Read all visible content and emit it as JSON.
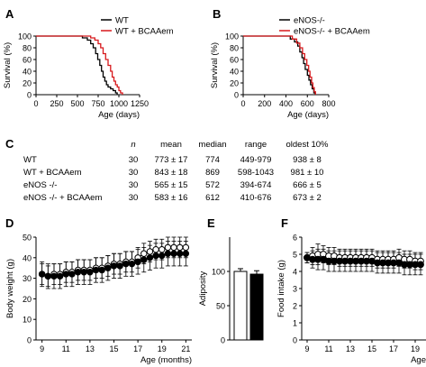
{
  "panels": {
    "A": {
      "letter": "A"
    },
    "B": {
      "letter": "B"
    },
    "C": {
      "letter": "C"
    },
    "D": {
      "letter": "D"
    },
    "E": {
      "letter": "E"
    },
    "F": {
      "letter": "F"
    }
  },
  "colors": {
    "black": "#000000",
    "red": "#d7191c"
  },
  "table": {
    "headers": [
      "",
      "n",
      "mean",
      "median",
      "range",
      "oldest 10%"
    ],
    "rows": [
      [
        "WT",
        "30",
        "773 ± 17",
        "774",
        "449-979",
        "938 ± 8"
      ],
      [
        "WT + BCAAem",
        "30",
        "843 ± 18",
        "869",
        "598-1043",
        "981 ± 10"
      ],
      [
        "eNOS -/-",
        "30",
        "565 ± 15",
        "572",
        "394-674",
        "666 ± 5"
      ],
      [
        "eNOS -/- + BCAAem",
        "30",
        "583 ± 16",
        "612",
        "410-676",
        "673 ± 2"
      ]
    ]
  },
  "chart_data": [
    {
      "panel": "A",
      "type": "line",
      "ylabel": "Survival (%)",
      "xlabel": "Age (days)",
      "xlim": [
        0,
        1250
      ],
      "ylim": [
        0,
        100
      ],
      "xticks": [
        0,
        250,
        500,
        750,
        1000,
        1250
      ],
      "yticks": [
        0,
        20,
        40,
        60,
        80,
        100
      ],
      "legend_position": "top-right",
      "series": [
        {
          "name": "WT",
          "color": "#000000",
          "x": [
            0,
            449,
            560,
            620,
            660,
            690,
            720,
            745,
            770,
            790,
            810,
            830,
            850,
            870,
            900,
            930,
            960,
            979
          ],
          "y": [
            100,
            100,
            97,
            93,
            87,
            80,
            70,
            60,
            50,
            40,
            30,
            23,
            17,
            13,
            10,
            7,
            3,
            0
          ]
        },
        {
          "name": "WT + BCAAem",
          "color": "#d7191c",
          "x": [
            0,
            598,
            660,
            710,
            750,
            780,
            810,
            840,
            870,
            900,
            920,
            940,
            960,
            980,
            1000,
            1020,
            1043
          ],
          "y": [
            100,
            100,
            97,
            93,
            87,
            80,
            70,
            60,
            50,
            40,
            30,
            23,
            17,
            13,
            7,
            3,
            0
          ]
        }
      ]
    },
    {
      "panel": "B",
      "type": "line",
      "ylabel": "Survival (%)",
      "xlabel": "Age (days)",
      "xlim": [
        0,
        800
      ],
      "ylim": [
        0,
        100
      ],
      "xticks": [
        0,
        200,
        400,
        600,
        800
      ],
      "yticks": [
        0,
        20,
        40,
        60,
        80,
        100
      ],
      "legend_position": "top-right",
      "series": [
        {
          "name": "eNOS-/-",
          "color": "#000000",
          "x": [
            0,
            394,
            440,
            480,
            510,
            530,
            550,
            565,
            580,
            600,
            615,
            630,
            645,
            660,
            674
          ],
          "y": [
            100,
            100,
            95,
            90,
            83,
            73,
            63,
            53,
            43,
            33,
            25,
            17,
            10,
            3,
            0
          ]
        },
        {
          "name": "eNOS-/- + BCAAem",
          "color": "#d7191c",
          "x": [
            0,
            410,
            460,
            500,
            530,
            555,
            575,
            595,
            612,
            625,
            640,
            652,
            664,
            676
          ],
          "y": [
            100,
            100,
            95,
            88,
            80,
            70,
            60,
            50,
            40,
            30,
            20,
            12,
            5,
            0
          ]
        }
      ]
    },
    {
      "panel": "D",
      "type": "line",
      "ylabel": "Body weight (g)",
      "xlabel": "Age (months)",
      "xlim": [
        8.5,
        21.5
      ],
      "ylim": [
        0,
        50
      ],
      "xticks": [
        9,
        11,
        13,
        15,
        17,
        19,
        21
      ],
      "yticks": [
        0,
        10,
        20,
        30,
        40,
        50
      ],
      "series": [
        {
          "marker": "open",
          "x": [
            9,
            9.5,
            10,
            10.5,
            11,
            11.5,
            12,
            12.5,
            13,
            13.5,
            14,
            14.5,
            15,
            15.5,
            16,
            16.5,
            17,
            17.5,
            18,
            18.5,
            19,
            19.5,
            20,
            20.5,
            21
          ],
          "y": [
            32,
            31,
            32,
            32,
            33,
            33,
            34,
            34,
            34,
            35,
            35,
            36,
            37,
            37,
            38,
            38,
            40,
            42,
            43,
            44,
            44,
            45,
            45,
            45,
            45
          ],
          "err": [
            5,
            5,
            5,
            5,
            5,
            5,
            5,
            5,
            5,
            5,
            5,
            5,
            5,
            5,
            5,
            5,
            5,
            5,
            5,
            5,
            5,
            5,
            5,
            5,
            5
          ]
        },
        {
          "marker": "filled",
          "x": [
            9,
            9.5,
            10,
            10.5,
            11,
            11.5,
            12,
            12.5,
            13,
            13.5,
            14,
            14.5,
            15,
            15.5,
            16,
            16.5,
            17,
            17.5,
            18,
            18.5,
            19,
            19.5,
            20,
            20.5,
            21
          ],
          "y": [
            32,
            31,
            31,
            31,
            32,
            32,
            33,
            33,
            33,
            34,
            34,
            35,
            36,
            36,
            37,
            37,
            38,
            39,
            40,
            41,
            41,
            42,
            42,
            42,
            42
          ],
          "err": [
            6,
            6,
            6,
            6,
            6,
            6,
            6,
            6,
            6,
            6,
            6,
            6,
            6,
            6,
            6,
            6,
            6,
            6,
            6,
            6,
            6,
            6,
            6,
            6,
            6
          ]
        }
      ]
    },
    {
      "panel": "E",
      "type": "bar",
      "ylabel": "Adiposity",
      "ylim": [
        0,
        150
      ],
      "yticks": [
        0,
        50,
        100
      ],
      "categories": [
        "",
        ""
      ],
      "bar_fills": [
        "#ffffff",
        "#000000"
      ],
      "values": [
        100,
        96
      ],
      "err": [
        4,
        5
      ]
    },
    {
      "panel": "F",
      "type": "line",
      "ylabel": "Food intake (g)",
      "xlabel": "Age",
      "xlim": [
        8.5,
        20
      ],
      "ylim": [
        0,
        6
      ],
      "xticks": [
        9,
        11,
        13,
        15,
        17,
        19
      ],
      "yticks": [
        0,
        1,
        2,
        3,
        4,
        5,
        6
      ],
      "series": [
        {
          "marker": "open",
          "x": [
            9,
            9.5,
            10,
            10.5,
            11,
            11.5,
            12,
            12.5,
            13,
            13.5,
            14,
            14.5,
            15,
            15.5,
            16,
            16.5,
            17,
            17.5,
            18,
            18.5,
            19,
            19.5
          ],
          "y": [
            4.8,
            4.9,
            5.0,
            5.0,
            4.9,
            4.9,
            4.8,
            4.8,
            4.8,
            4.8,
            4.8,
            4.8,
            4.8,
            4.7,
            4.7,
            4.7,
            4.7,
            4.8,
            4.7,
            4.7,
            4.6,
            4.6
          ],
          "err": [
            0.3,
            0.5,
            0.6,
            0.5,
            0.5,
            0.5,
            0.5,
            0.5,
            0.5,
            0.5,
            0.5,
            0.5,
            0.5,
            0.5,
            0.5,
            0.5,
            0.5,
            0.5,
            0.5,
            0.5,
            0.5,
            0.5
          ]
        },
        {
          "marker": "filled",
          "x": [
            9,
            9.5,
            10,
            10.5,
            11,
            11.5,
            12,
            12.5,
            13,
            13.5,
            14,
            14.5,
            15,
            15.5,
            16,
            16.5,
            17,
            17.5,
            18,
            18.5,
            19,
            19.5
          ],
          "y": [
            4.8,
            4.7,
            4.7,
            4.7,
            4.6,
            4.6,
            4.6,
            4.6,
            4.6,
            4.6,
            4.6,
            4.6,
            4.6,
            4.5,
            4.5,
            4.5,
            4.5,
            4.5,
            4.4,
            4.4,
            4.4,
            4.4
          ],
          "err": [
            0.3,
            0.5,
            0.6,
            0.6,
            0.6,
            0.6,
            0.6,
            0.6,
            0.6,
            0.6,
            0.6,
            0.6,
            0.6,
            0.6,
            0.6,
            0.6,
            0.6,
            0.6,
            0.6,
            0.6,
            0.6,
            0.6
          ]
        }
      ]
    }
  ]
}
